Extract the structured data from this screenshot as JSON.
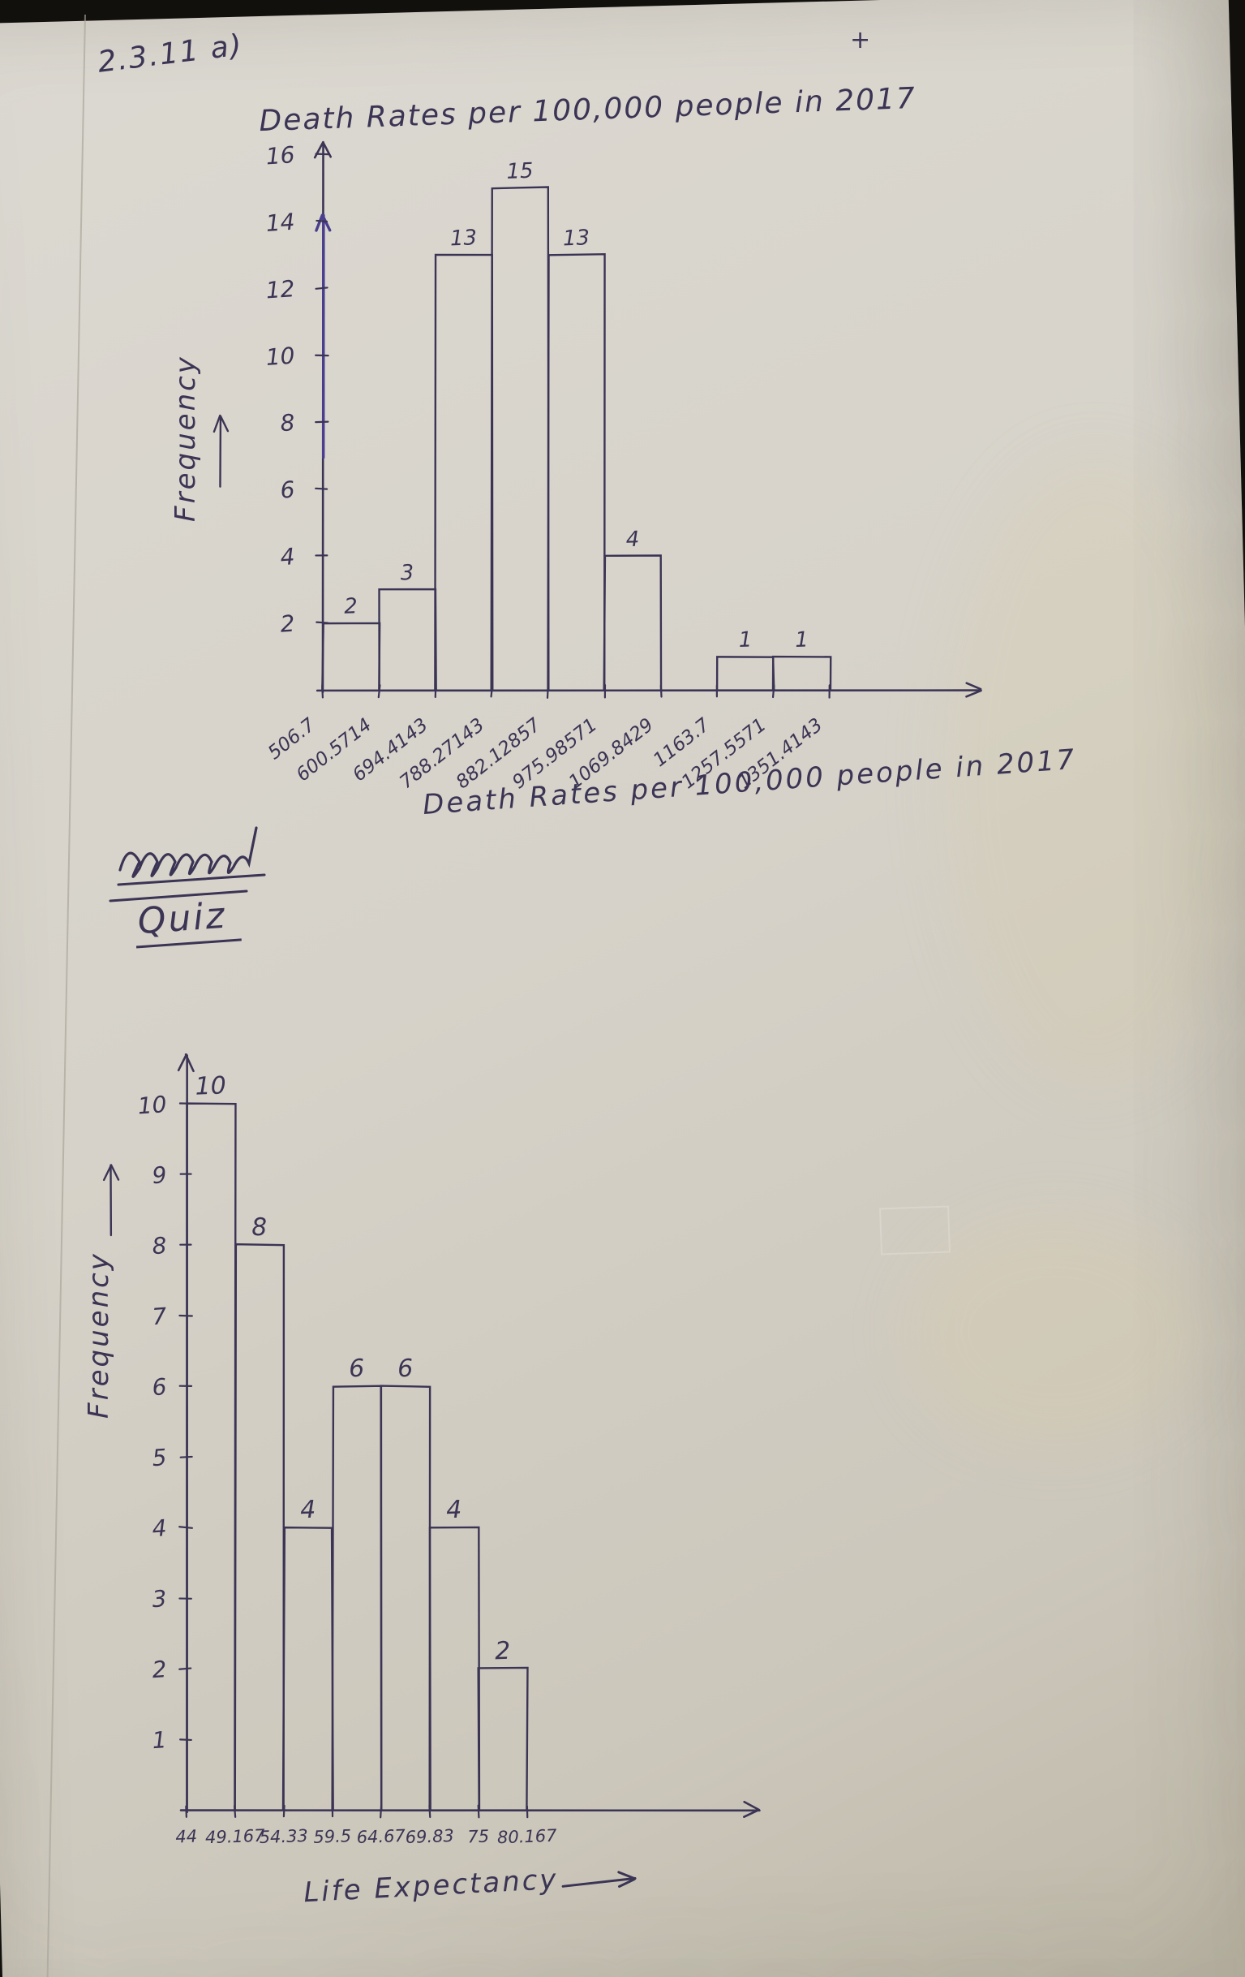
{
  "page": {
    "corner_label": "2.3.11 a)",
    "plus_mark": "+",
    "quiz_heading": "Quiz"
  },
  "colors": {
    "ink": "#3b3454",
    "ink_purple": "#4a3e8e",
    "paper": "#d6d2c9"
  },
  "chart_data": [
    {
      "type": "bar",
      "chart_kind": "histogram",
      "title": "Death Rates per 100,000 people in 2017",
      "xlabel": "Death Rates per 100,000 people in 2017",
      "ylabel": "Frequency",
      "bin_edges": [
        "506.7",
        "600.5714",
        "694.4143",
        "788.27143",
        "882.12857",
        "975.98571",
        "1069.8429",
        "1163.7",
        "1257.5571",
        "1351.4143"
      ],
      "values": [
        2,
        3,
        13,
        15,
        13,
        4,
        0,
        1,
        1
      ],
      "yticks": [
        2,
        4,
        6,
        8,
        10,
        12,
        14,
        16
      ],
      "ylim": [
        0,
        16.5
      ],
      "grid": false,
      "legend": "none"
    },
    {
      "type": "bar",
      "chart_kind": "histogram",
      "title": "",
      "xlabel": "Life Expectancy",
      "ylabel": "Frequency",
      "bin_edges": [
        "44",
        "49.167",
        "54.33",
        "59.5",
        "64.67",
        "69.83",
        "75",
        "80.167"
      ],
      "values": [
        10,
        8,
        4,
        6,
        6,
        4,
        2
      ],
      "yticks": [
        1,
        2,
        3,
        4,
        5,
        6,
        7,
        8,
        9,
        10
      ],
      "ylim": [
        0,
        10.8
      ],
      "grid": false,
      "legend": "none"
    }
  ]
}
